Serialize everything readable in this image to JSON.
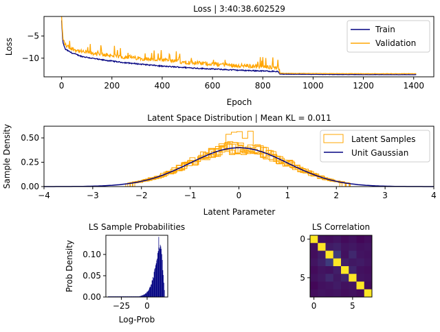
{
  "chart_data": [
    {
      "type": "line",
      "title": "Loss | 3:40:38.602529",
      "xlabel": "Epoch",
      "ylabel": "Loss",
      "xlim": [
        -70,
        1480
      ],
      "ylim": [
        -14.2,
        -0.6
      ],
      "xticks": [
        0,
        200,
        400,
        600,
        800,
        1000,
        1200,
        1400
      ],
      "yticks": [
        -10,
        -5
      ],
      "legend_position": "upper right",
      "series": [
        {
          "name": "Train",
          "color": "#000080",
          "x": [
            0,
            5,
            15,
            40,
            80,
            150,
            250,
            400,
            550,
            700,
            860,
            868,
            1000,
            1200,
            1410
          ],
          "y": [
            -1.5,
            -6.5,
            -8.0,
            -8.8,
            -9.6,
            -10.3,
            -11.0,
            -11.8,
            -12.3,
            -12.7,
            -13.0,
            -13.6,
            -13.65,
            -13.7,
            -13.72
          ]
        },
        {
          "name": "Validation",
          "color": "#FFA500",
          "x": [
            0,
            5,
            15,
            40,
            80,
            150,
            250,
            400,
            550,
            700,
            860,
            868,
            1000,
            1200,
            1410
          ],
          "y": [
            -1.2,
            -6.0,
            -7.5,
            -8.3,
            -9.0,
            -9.6,
            -10.2,
            -10.9,
            -11.6,
            -12.1,
            -12.5,
            -13.4,
            -13.45,
            -13.5,
            -13.5
          ]
        }
      ]
    },
    {
      "type": "histogram",
      "title": "Latent Space Distribution | Mean KL = 0.011",
      "xlabel": "Latent Parameter",
      "ylabel": "Sample Density",
      "xlim": [
        -4,
        4
      ],
      "ylim": [
        0,
        0.62
      ],
      "xticks": [
        -4,
        -3,
        -2,
        -1,
        0,
        1,
        2,
        3,
        4
      ],
      "yticks": [
        0.0,
        0.25,
        0.5
      ],
      "legend_position": "upper right",
      "series": [
        {
          "name": "Latent Samples",
          "color": "#FFA500",
          "style": "step histograms (8 latent dims)",
          "peak": 0.58
        },
        {
          "name": "Unit Gaussian",
          "color": "#000080",
          "mean": 0,
          "std": 1,
          "peak": 0.399
        }
      ]
    },
    {
      "type": "histogram",
      "title": "LS Sample Probabilities",
      "xlabel": "Log-Prob",
      "ylabel": "Prob Density",
      "xlim": [
        -40,
        20
      ],
      "ylim": [
        0,
        0.145
      ],
      "xticks": [
        -25,
        0
      ],
      "yticks": [
        0.0,
        0.05,
        0.1
      ],
      "color": "#000080",
      "peak_x": 11,
      "peak_y": 0.135
    },
    {
      "type": "heatmap",
      "title": "LS Correlation",
      "xticks": [
        0,
        5
      ],
      "yticks": [
        0,
        5
      ],
      "colormap": "viridis",
      "matrix": [
        [
          1.0,
          0.05,
          0.04,
          0.06,
          0.03,
          0.05,
          0.02,
          0.04
        ],
        [
          0.05,
          1.0,
          0.08,
          0.1,
          0.06,
          0.07,
          0.05,
          0.06
        ],
        [
          0.04,
          0.08,
          1.0,
          0.18,
          0.05,
          0.12,
          0.06,
          0.05
        ],
        [
          0.06,
          0.1,
          0.18,
          1.0,
          0.09,
          0.07,
          0.08,
          0.06
        ],
        [
          0.03,
          0.06,
          0.05,
          0.09,
          1.0,
          0.11,
          0.05,
          0.04
        ],
        [
          0.05,
          0.07,
          0.12,
          0.07,
          0.11,
          1.0,
          0.06,
          0.05
        ],
        [
          0.02,
          0.05,
          0.06,
          0.08,
          0.05,
          0.06,
          1.0,
          0.03
        ],
        [
          0.04,
          0.06,
          0.05,
          0.06,
          0.04,
          0.05,
          0.03,
          1.0
        ]
      ]
    }
  ]
}
